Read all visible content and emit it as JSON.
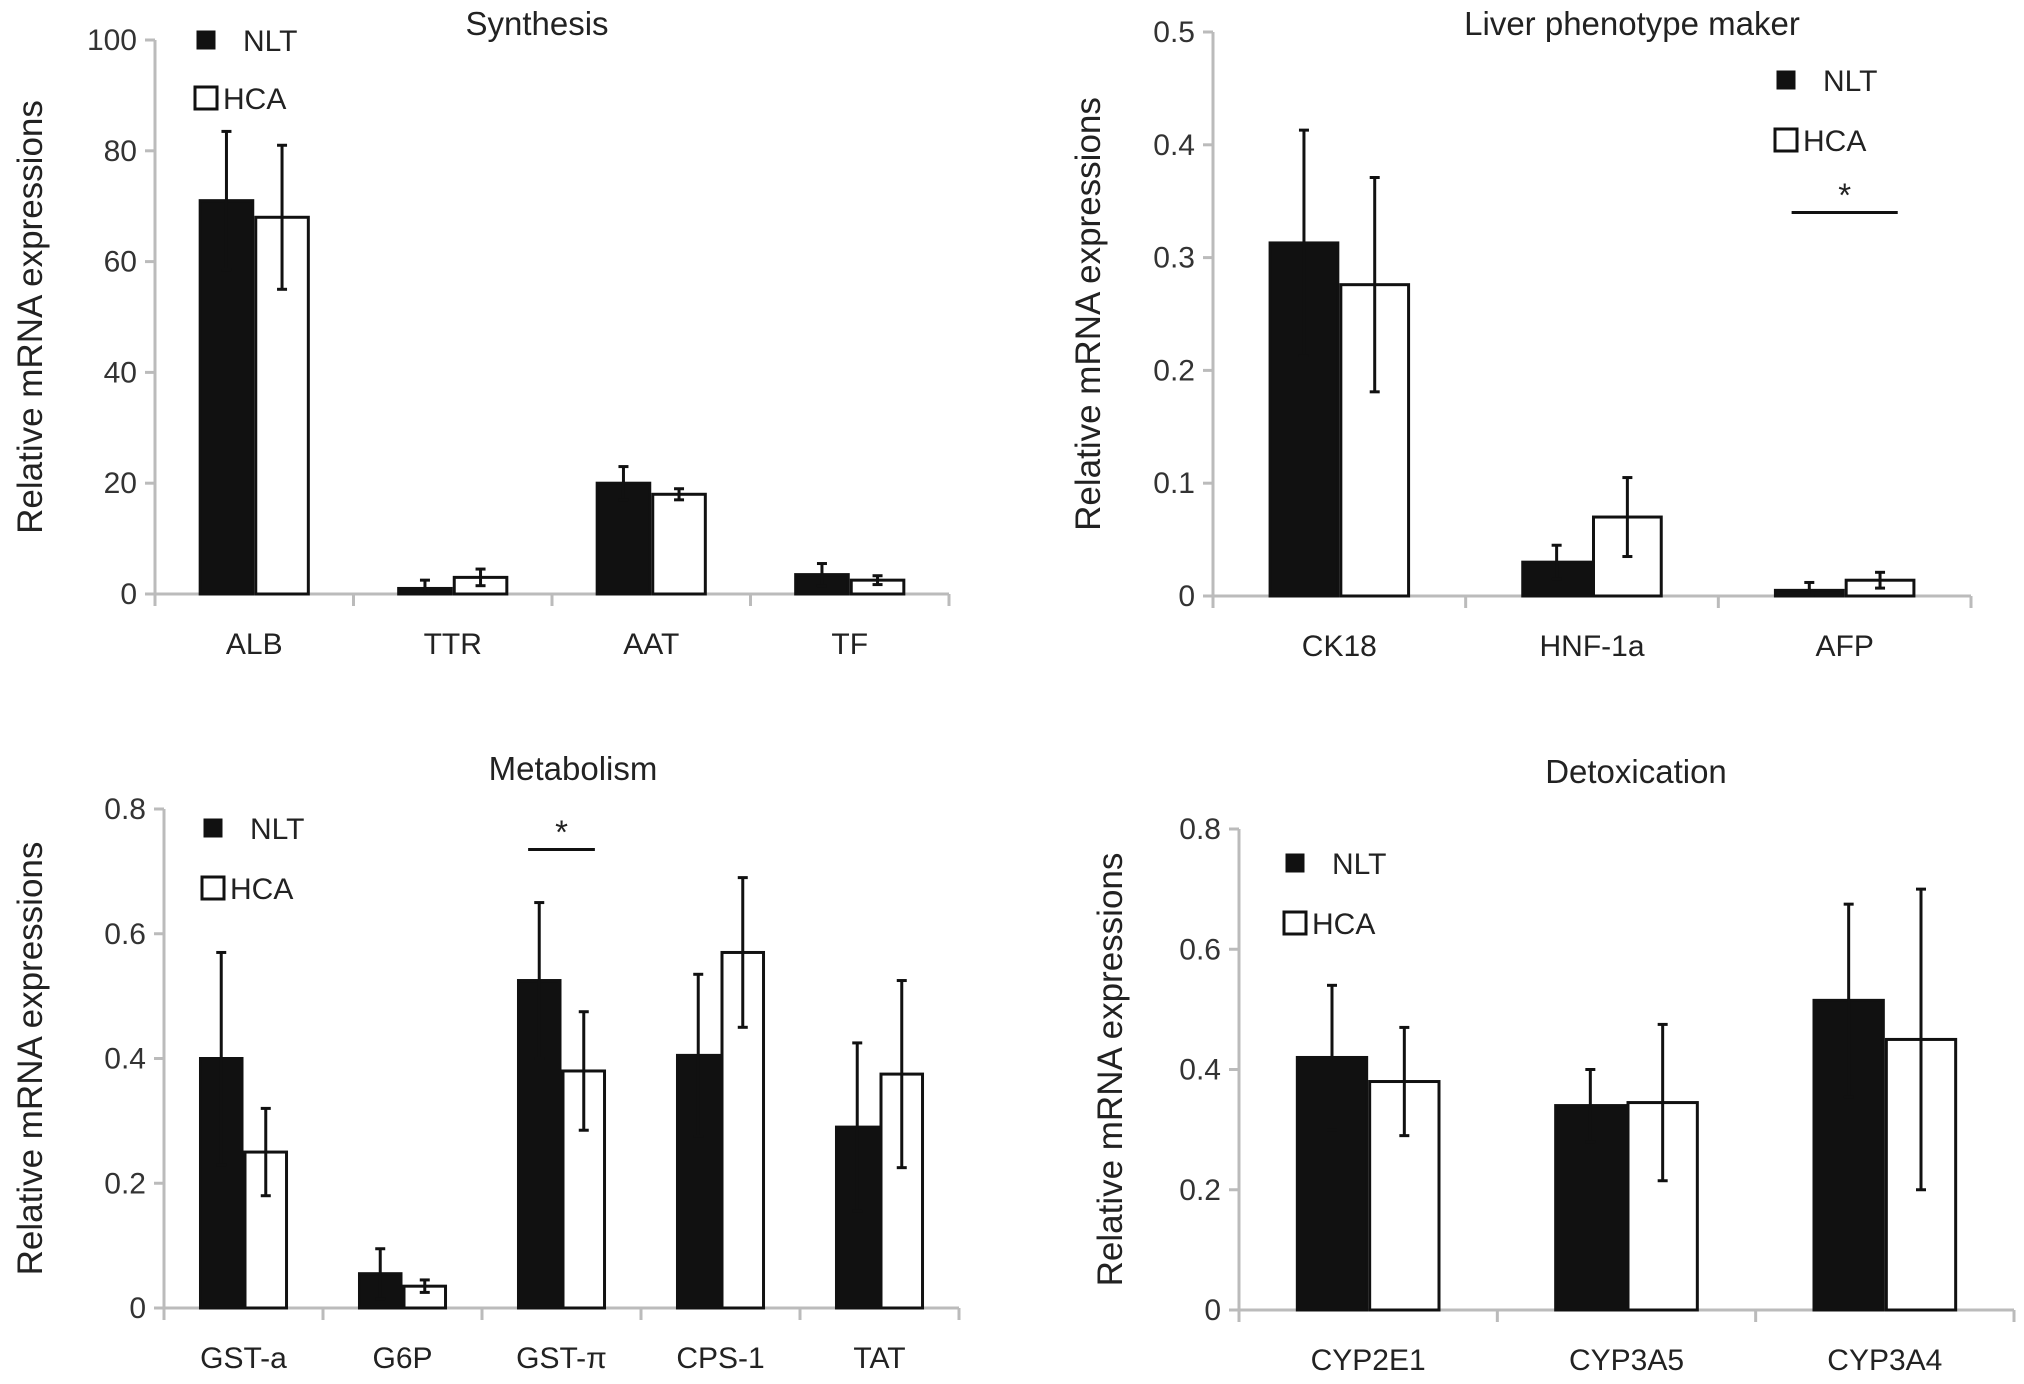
{
  "colors": {
    "NLT": "#111111",
    "HCA": "#ffffff",
    "bar_outline": "#111111",
    "axis": "#bbbbbb"
  },
  "chart_data": [
    {
      "type": "bar",
      "title": "Synthesis",
      "ylabel": "Relative mRNA expressions",
      "xlabel": "",
      "ylim": [
        0,
        100
      ],
      "yticks": [
        "0",
        "20",
        "40",
        "60",
        "80",
        "100"
      ],
      "ytick_values": [
        0,
        20,
        40,
        60,
        80,
        100
      ],
      "categories": [
        "ALB",
        "TTR",
        "AAT",
        "TF"
      ],
      "legend": "top-left",
      "series": [
        {
          "name": "NLT",
          "values": [
            71,
            1,
            20,
            3.5
          ],
          "errors": [
            12.5,
            1.5,
            3,
            2
          ]
        },
        {
          "name": "HCA",
          "values": [
            68,
            3,
            18,
            2.5
          ],
          "errors": [
            13,
            1.5,
            1,
            0.8
          ]
        }
      ],
      "annotations": []
    },
    {
      "type": "bar",
      "title": "Liver phenotype maker",
      "ylabel": "Relative mRNA expressions",
      "xlabel": "",
      "ylim": [
        0,
        0.5
      ],
      "yticks": [
        "0",
        "0.1",
        "0.2",
        "0.3",
        "0.4",
        "0.5"
      ],
      "ytick_values": [
        0,
        0.1,
        0.2,
        0.3,
        0.4,
        0.5
      ],
      "categories": [
        "CK18",
        "HNF-1a",
        "AFP"
      ],
      "legend": "top-right",
      "series": [
        {
          "name": "NLT",
          "values": [
            0.313,
            0.03,
            0.005
          ],
          "errors": [
            0.1,
            0.015,
            0.007
          ]
        },
        {
          "name": "HCA",
          "values": [
            0.276,
            0.07,
            0.014
          ],
          "errors": [
            0.095,
            0.035,
            0.007
          ]
        }
      ],
      "annotations": [
        {
          "text": "*",
          "category": "AFP",
          "y": 0.34
        }
      ]
    },
    {
      "type": "bar",
      "title": "Metabolism",
      "ylabel": "Relative mRNA expressions",
      "xlabel": "",
      "ylim": [
        0,
        0.8
      ],
      "yticks": [
        "0",
        "0.2",
        "0.4",
        "0.6",
        "0.8"
      ],
      "ytick_values": [
        0,
        0.2,
        0.4,
        0.6,
        0.8
      ],
      "categories": [
        "GST-a",
        "G6P",
        "GST-π",
        "CPS-1",
        "TAT"
      ],
      "legend": "top-left",
      "series": [
        {
          "name": "NLT",
          "values": [
            0.4,
            0.055,
            0.525,
            0.405,
            0.29
          ],
          "errors": [
            0.17,
            0.04,
            0.125,
            0.13,
            0.135
          ]
        },
        {
          "name": "HCA",
          "values": [
            0.25,
            0.035,
            0.38,
            0.57,
            0.375
          ],
          "errors": [
            0.07,
            0.01,
            0.095,
            0.12,
            0.15
          ]
        }
      ],
      "annotations": [
        {
          "text": "*",
          "category": "GST-π",
          "y": 0.735
        }
      ]
    },
    {
      "type": "bar",
      "title": "Detoxication",
      "ylabel": "Relative mRNA expressions",
      "xlabel": "",
      "ylim": [
        0,
        0.8
      ],
      "yticks": [
        "0",
        "0.2",
        "0.4",
        "0.6",
        "0.8"
      ],
      "ytick_values": [
        0,
        0.2,
        0.4,
        0.6,
        0.8
      ],
      "categories": [
        "CYP2E1",
        "CYP3A5",
        "CYP3A4"
      ],
      "legend": "top-left",
      "series": [
        {
          "name": "NLT",
          "values": [
            0.42,
            0.34,
            0.515
          ],
          "errors": [
            0.12,
            0.06,
            0.16
          ]
        },
        {
          "name": "HCA",
          "values": [
            0.38,
            0.345,
            0.45
          ],
          "errors": [
            0.09,
            0.13,
            0.25
          ]
        }
      ],
      "annotations": []
    }
  ]
}
